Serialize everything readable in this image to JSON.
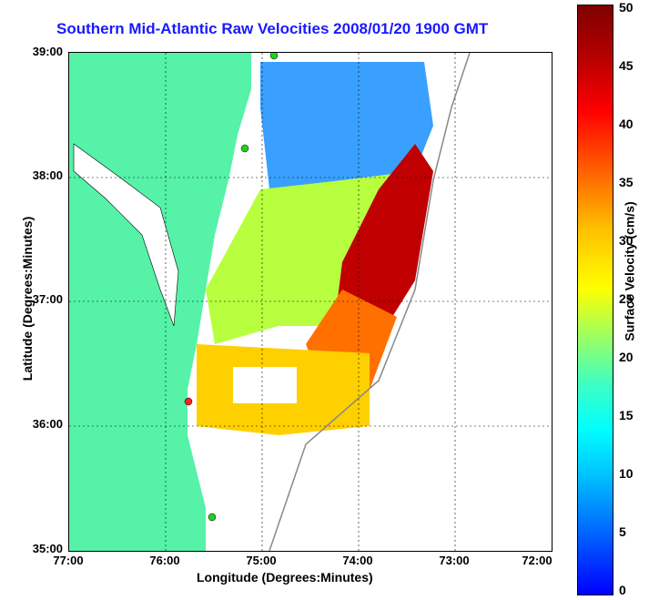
{
  "title": "Southern Mid-Atlantic Raw Velocities 2008/01/20 1900 GMT",
  "xlabel": "Longitude (Degrees:Minutes)",
  "ylabel": "Latitude (Degrees:Minutes)",
  "colorbar": {
    "label": "Surface Velocity (cm/s)",
    "ticks": [
      "50",
      "45",
      "40",
      "35",
      "30",
      "25",
      "20",
      "15",
      "10",
      "5",
      "0"
    ],
    "colors": [
      "#0000ff",
      "#00c0ff",
      "#00ffff",
      "#a0ff60",
      "#ffff00",
      "#ff6000",
      "#ff0000",
      "#800000"
    ]
  },
  "xticks": [
    "77:00",
    "76:00",
    "75:00",
    "74:00",
    "73:00",
    "72:00"
  ],
  "yticks": [
    "39:00",
    "38:00",
    "37:00",
    "36:00",
    "35:00"
  ],
  "colors": {
    "land": "#55f2a8",
    "title": "#1a1aff",
    "grid": "#000000"
  }
}
